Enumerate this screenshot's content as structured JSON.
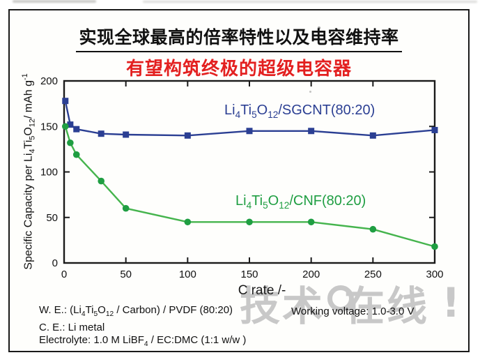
{
  "page": {
    "background": "#ffffff",
    "frame_color": "#1a1a1a"
  },
  "header": {
    "title_main": "实现全球最高的倍率特性以及电容维持率",
    "title_sub": "有望构筑终极的超级电容器",
    "title_sub_color": "#e32020"
  },
  "chart_data": {
    "type": "line",
    "x": [
      1,
      5,
      10,
      30,
      50,
      100,
      150,
      200,
      250,
      300
    ],
    "series": [
      {
        "name": "Li4Ti5O12/SGCNT(80:20)",
        "marker": "square",
        "color": "#2b3f93",
        "marker_color": "#2b3f93",
        "values": [
          178,
          152,
          147,
          142,
          141,
          140,
          145,
          145,
          140,
          146
        ]
      },
      {
        "name": "Li4Ti5O12/CNF(80:20)",
        "marker": "circle",
        "color": "#45b44d",
        "marker_color": "#1f9e42",
        "values": [
          150,
          132,
          119,
          90,
          60,
          45,
          45,
          45,
          37,
          18
        ]
      }
    ],
    "title": "",
    "xlabel": "C rate /-",
    "ylabel": "Specific Capacity per Li4Ti5O12/ mAh g-1",
    "xlim": [
      0,
      300
    ],
    "ylim": [
      0,
      200
    ],
    "xticks": [
      0,
      50,
      100,
      150,
      200,
      250,
      300
    ],
    "yticks": [
      0,
      50,
      100,
      150,
      200
    ],
    "grid": false,
    "legend_position": "inline-annotations",
    "axis_color": "#1a1a1a"
  },
  "labels": {
    "xlabel": "C rate /-",
    "ylabel_parts": [
      {
        "t": "Specific Capacity per Li"
      },
      {
        "sub": "4"
      },
      {
        "t": "Ti"
      },
      {
        "sub": "5"
      },
      {
        "t": "O"
      },
      {
        "sub": "12"
      },
      {
        "t": "/ mAh g"
      },
      {
        "sup": "-1"
      }
    ],
    "sgcnt_parts": [
      {
        "t": "Li"
      },
      {
        "sub": "4"
      },
      {
        "t": "Ti"
      },
      {
        "sub": "5"
      },
      {
        "t": "O"
      },
      {
        "sub": "12"
      },
      {
        "t": "/SGCNT(80:20)"
      }
    ],
    "cnf_parts": [
      {
        "t": "Li"
      },
      {
        "sub": "4"
      },
      {
        "t": "Ti"
      },
      {
        "sub": "5"
      },
      {
        "t": "O"
      },
      {
        "sub": "12"
      },
      {
        "t": "/CNF(80:20)"
      }
    ]
  },
  "footer": {
    "we_parts": [
      {
        "t": "W. E.: (Li"
      },
      {
        "sub": "4"
      },
      {
        "t": "Ti"
      },
      {
        "sub": "5"
      },
      {
        "t": "O"
      },
      {
        "sub": "12"
      },
      {
        "t": " / Carbon) / PVDF (80:20)"
      }
    ],
    "ce": "C. E.: Li metal",
    "electrolyte_parts": [
      {
        "t": "Electrolyte: 1.0 M LiBF"
      },
      {
        "sub": "4"
      },
      {
        "t": " / EC:DMC (1:1 w/w )"
      }
    ],
    "working_voltage": "Working voltage: 1.0-3.0 V"
  },
  "watermark": {
    "left_text": "技术",
    "right_text": "在线",
    "bang": "!",
    "color": "#c8c8c8"
  }
}
